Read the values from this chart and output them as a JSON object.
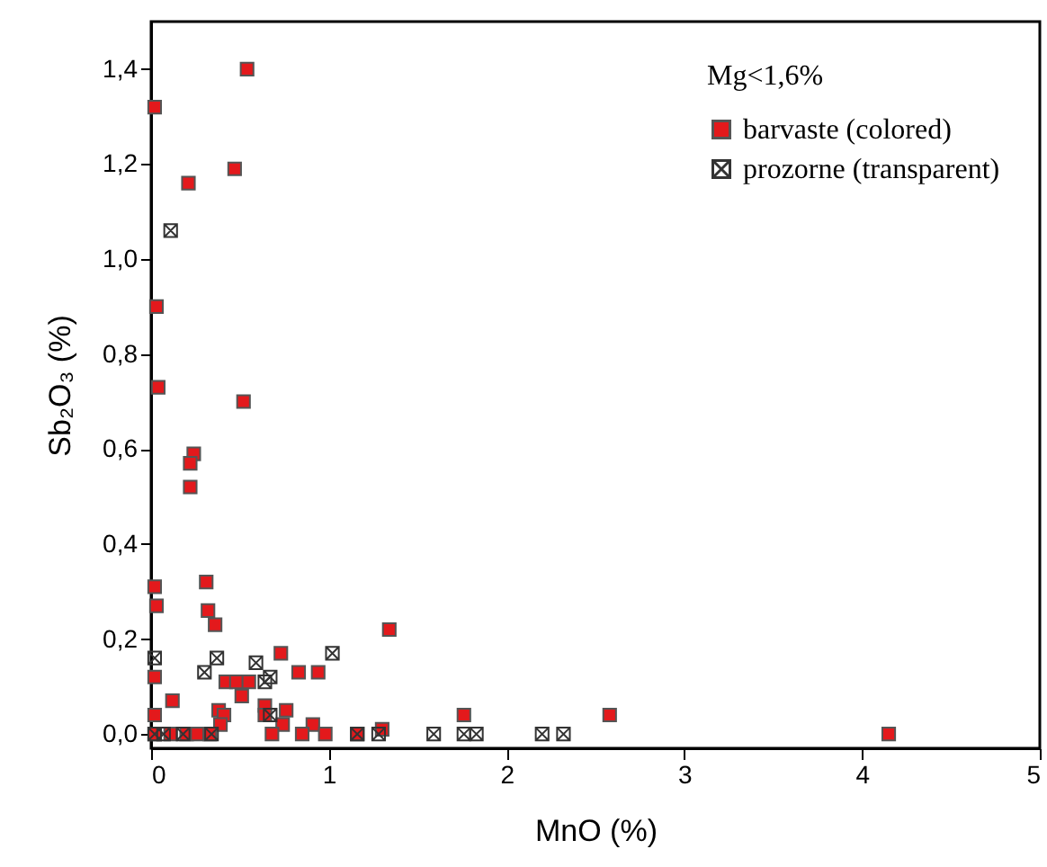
{
  "chart_data": {
    "type": "scatter",
    "xlabel": "MnO (%)",
    "ylabel": "Sb₂O₃ (%)",
    "legend_title": "Mg<1,6%",
    "xlim": [
      0,
      5
    ],
    "xticks": [
      0,
      1,
      2,
      3,
      4,
      5
    ],
    "ylim": [
      -0.03,
      1.5
    ],
    "yticks": [
      {
        "value": 0,
        "label": "0,0"
      },
      {
        "value": 0.2,
        "label": "0,2"
      },
      {
        "value": 0.4,
        "label": "0,4"
      },
      {
        "value": 0.6,
        "label": "0,6"
      },
      {
        "value": 0.8,
        "label": "0,8"
      },
      {
        "value": 1.0,
        "label": "1,0"
      },
      {
        "value": 1.2,
        "label": "1,2"
      },
      {
        "value": 1.4,
        "label": "1,4"
      }
    ],
    "grid": false,
    "legend": "top right",
    "series": [
      {
        "name": "barvaste (colored)",
        "color": "#e3191c",
        "marker": "square",
        "x": [
          0.02,
          0.54,
          0.47,
          0.21,
          0.03,
          0.04,
          0.52,
          0.24,
          0.22,
          0.22,
          0.02,
          0.03,
          0.31,
          0.32,
          0.36,
          1.34,
          0.73,
          0.02,
          0.12,
          0.02,
          0.42,
          0.48,
          0.55,
          0.51,
          0.83,
          0.94,
          0.38,
          0.41,
          0.39,
          0.64,
          0.76,
          0.74,
          0.91,
          1.76,
          2.58,
          4.15,
          0.85,
          0.98,
          0.68,
          1.16,
          1.3,
          0.02,
          0.11,
          0.2,
          0.26,
          0.33,
          0.64
        ],
        "values": [
          1.32,
          1.4,
          1.19,
          1.16,
          0.9,
          0.73,
          0.7,
          0.59,
          0.57,
          0.52,
          0.31,
          0.27,
          0.32,
          0.26,
          0.23,
          0.22,
          0.17,
          0.12,
          0.07,
          0.04,
          0.11,
          0.11,
          0.11,
          0.08,
          0.13,
          0.13,
          0.05,
          0.04,
          0.02,
          0.06,
          0.05,
          0.02,
          0.02,
          0.04,
          0.04,
          0,
          0,
          0,
          0,
          0,
          0.01,
          0,
          0,
          0,
          0,
          0,
          0.04
        ]
      },
      {
        "name": "prozorne (transparent)",
        "color": "#333333",
        "marker": "cross",
        "x": [
          0.11,
          0.02,
          0.3,
          0.37,
          0.59,
          0.64,
          0.67,
          1.02,
          0.67,
          0.02,
          0.07,
          0.18,
          0.34,
          1.16,
          1.28,
          1.59,
          1.76,
          1.83,
          2.2,
          2.32
        ],
        "values": [
          1.06,
          0.16,
          0.13,
          0.16,
          0.15,
          0.11,
          0.12,
          0.17,
          0.04,
          0,
          0,
          0,
          0,
          0,
          0,
          0,
          0,
          0,
          0,
          0
        ]
      }
    ]
  }
}
